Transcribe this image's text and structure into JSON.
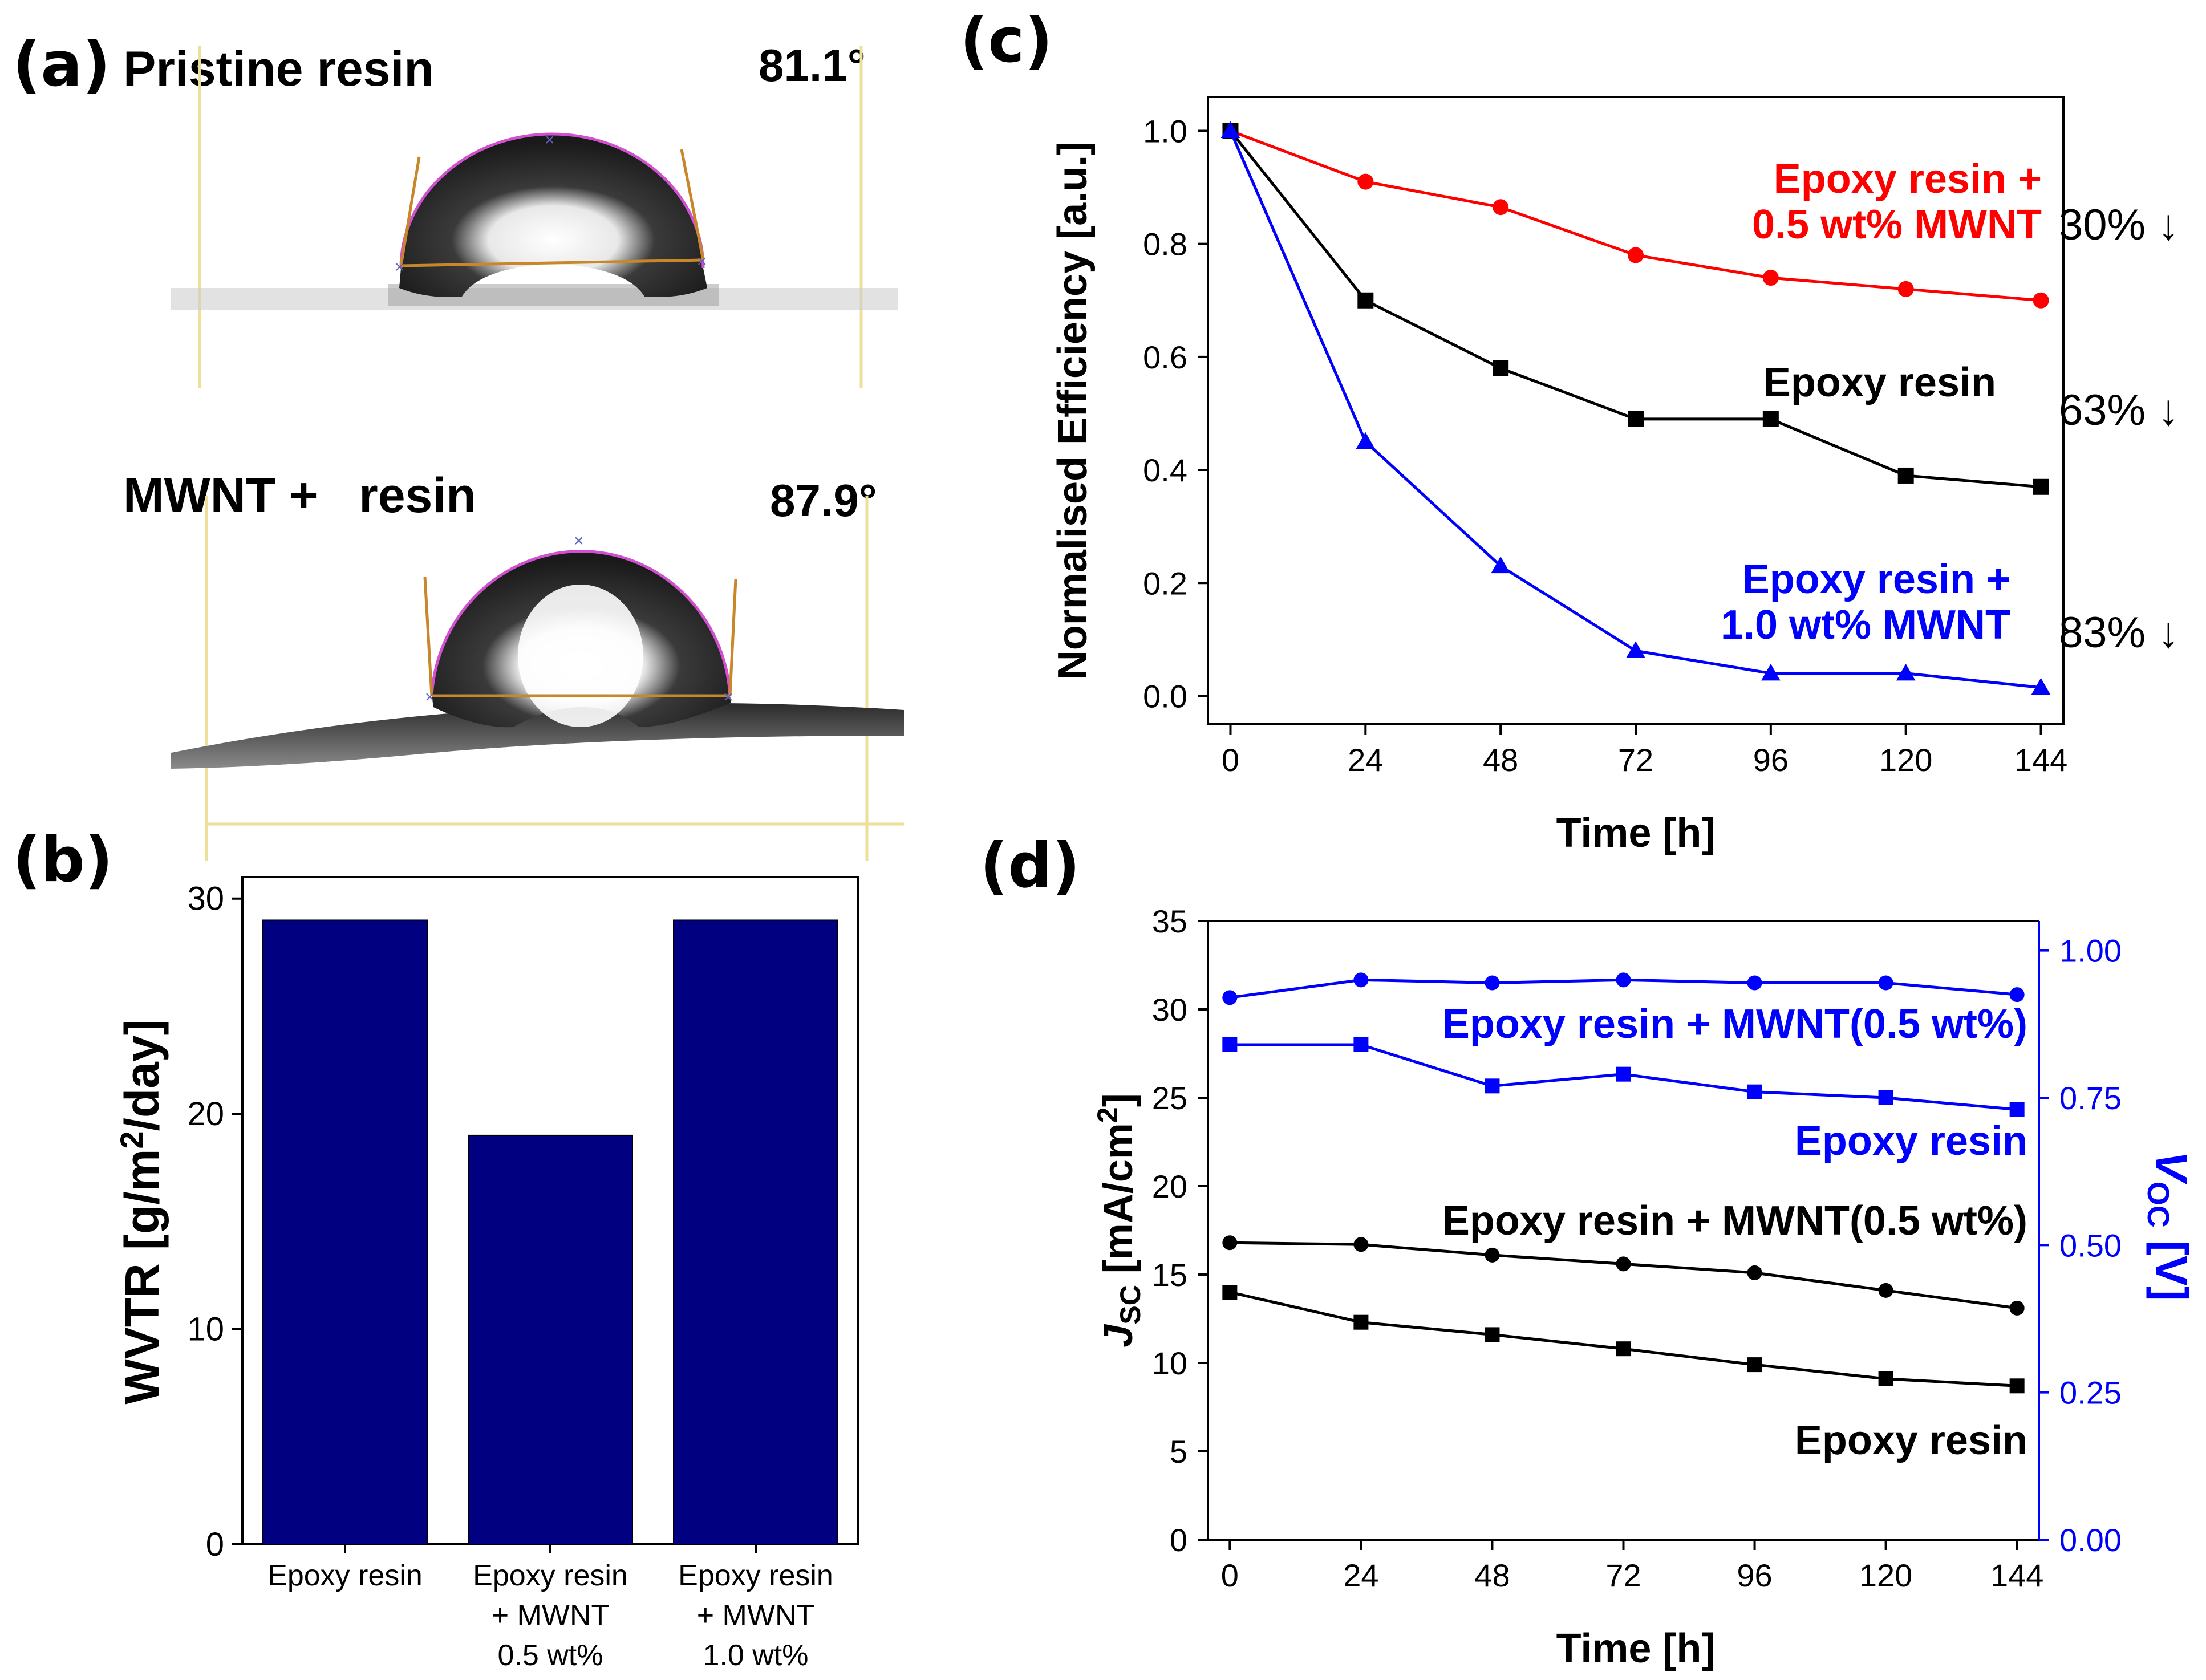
{
  "panel_labels": {
    "a": "(a)",
    "b": "(b)",
    "c": "(c)",
    "d": "(d)"
  },
  "panel_a": {
    "top_label": "Pristine resin",
    "top_angle": "81.1°",
    "bottom_label": "MWNT +   resin",
    "bottom_angle": "87.9°"
  },
  "chart_data": [
    {
      "panel": "b",
      "type": "bar",
      "categories": [
        [
          "Epoxy resin"
        ],
        [
          "Epoxy resin",
          "+ MWNT",
          "0.5 wt%"
        ],
        [
          "Epoxy resin",
          "+ MWNT",
          "1.0 wt%"
        ]
      ],
      "values": [
        29,
        19,
        29
      ],
      "ylabel": "WVTR [g/m²/day]",
      "ylabel_parts": [
        "WVTR [g/m",
        "2",
        "/day]"
      ],
      "ylim": [
        0,
        31
      ],
      "yticks": [
        0,
        10,
        20,
        30
      ],
      "bar_color": "#000080"
    },
    {
      "panel": "c",
      "type": "line",
      "xlabel": "Time [h]",
      "ylabel": "Normalised Efficiency [a.u.]",
      "x": [
        0,
        24,
        48,
        72,
        96,
        120,
        144
      ],
      "xlim": [
        -4,
        148
      ],
      "ylim": [
        -0.05,
        1.06
      ],
      "xticks": [
        0,
        24,
        48,
        72,
        96,
        120,
        144
      ],
      "yticks": [
        "0.0",
        "0.2",
        "0.4",
        "0.6",
        "0.8",
        "1.0"
      ],
      "series": [
        {
          "name": "Epoxy resin + 0.5 wt% MWNT",
          "label_lines": [
            "Epoxy resin +",
            "0.5 wt% MWNT"
          ],
          "color": "#ff0000",
          "marker": "circle",
          "values": [
            1.0,
            0.91,
            0.865,
            0.78,
            0.74,
            0.72,
            0.7
          ],
          "drop": "30% ↓"
        },
        {
          "name": "Epoxy resin",
          "label_lines": [
            "Epoxy resin"
          ],
          "color": "#000000",
          "marker": "square",
          "values": [
            1.0,
            0.7,
            0.58,
            0.49,
            0.49,
            0.39,
            0.37
          ],
          "drop": "63% ↓"
        },
        {
          "name": "Epoxy resin + 1.0 wt% MWNT",
          "label_lines": [
            "Epoxy resin +",
            "1.0 wt% MWNT"
          ],
          "color": "#0000ff",
          "marker": "triangle",
          "values": [
            1.0,
            0.45,
            0.23,
            0.08,
            0.04,
            0.04,
            0.015
          ],
          "drop": "83% ↓"
        }
      ]
    },
    {
      "panel": "d",
      "type": "line",
      "xlabel": "Time [h]",
      "ylabel_left": [
        "J",
        "SC",
        " [mA/cm",
        "2",
        "]"
      ],
      "ylabel_right": [
        "V",
        "OC",
        " [V]"
      ],
      "x": [
        0,
        24,
        48,
        72,
        96,
        120,
        144
      ],
      "xlim": [
        -4,
        148
      ],
      "ylim_left": [
        0,
        35
      ],
      "ylim_right": [
        0,
        1.05
      ],
      "xticks": [
        0,
        24,
        48,
        72,
        96,
        120,
        144
      ],
      "yticks_left": [
        0,
        5,
        10,
        15,
        20,
        25,
        30,
        35
      ],
      "yticks_right": [
        "0.00",
        "0.25",
        "0.50",
        "0.75",
        "1.00"
      ],
      "series": [
        {
          "name": "Voc - Epoxy resin + MWNT(0.5 wt%)",
          "axis": "right",
          "color": "#0000ff",
          "marker": "circle",
          "values": [
            0.92,
            0.95,
            0.945,
            0.95,
            0.945,
            0.945,
            0.925
          ]
        },
        {
          "name": "Voc - Epoxy resin",
          "axis": "right",
          "color": "#0000ff",
          "marker": "square",
          "values": [
            0.84,
            0.84,
            0.77,
            0.79,
            0.76,
            0.75,
            0.73
          ]
        },
        {
          "name": "Jsc - Epoxy resin + MWNT(0.5 wt%)",
          "axis": "left",
          "color": "#000000",
          "marker": "circle",
          "values": [
            16.8,
            16.7,
            16.1,
            15.6,
            15.1,
            14.1,
            13.1
          ]
        },
        {
          "name": "Jsc - Epoxy resin",
          "axis": "left",
          "color": "#000000",
          "marker": "square",
          "values": [
            14.0,
            12.3,
            11.6,
            10.8,
            9.9,
            9.1,
            8.7
          ]
        }
      ],
      "annotations": [
        {
          "text": "Epoxy resin + MWNT(0.5 wt%)",
          "color": "#0000ff"
        },
        {
          "text": "Epoxy resin",
          "color": "#0000ff"
        },
        {
          "text": "Epoxy resin + MWNT(0.5 wt%)",
          "color": "#000000"
        },
        {
          "text": "Epoxy resin",
          "color": "#000000"
        }
      ]
    }
  ]
}
